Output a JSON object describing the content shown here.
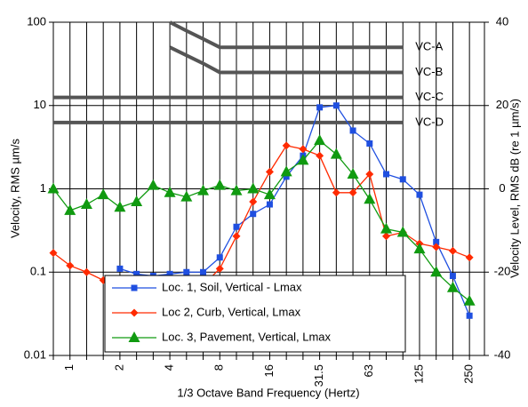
{
  "chart_data": {
    "type": "line",
    "xlabel": "1/3 Octave Band Frequency (Hertz)",
    "ylabel": "Velocity, RMS µm/s",
    "y2label": "Velocity Level, RMS dB (re 1 µm/s)",
    "categories": [
      null,
      "1",
      null,
      null,
      "2",
      null,
      null,
      "4",
      null,
      null,
      "8",
      null,
      null,
      "16",
      null,
      null,
      "31.5",
      null,
      null,
      "63",
      null,
      null,
      "125",
      null,
      null,
      "250"
    ],
    "ylim": [
      0.01,
      100
    ],
    "yticks": [
      0.01,
      0.1,
      1,
      10,
      100
    ],
    "yscale": "log",
    "y2lim": [
      -40,
      40
    ],
    "y2ticks": [
      -40,
      -20,
      0,
      20,
      40
    ],
    "grid": true,
    "legend": "bottom",
    "series": [
      {
        "name": "Loc. 1, Soil, Vertical - Lmax",
        "color": "#1f4fe0",
        "marker": "square",
        "values": [
          null,
          null,
          null,
          null,
          0.11,
          0.095,
          0.09,
          0.095,
          0.1,
          0.1,
          0.15,
          0.35,
          0.5,
          0.65,
          1.4,
          2.5,
          9.5,
          10,
          5,
          3.5,
          1.5,
          1.3,
          0.85,
          0.23,
          0.09,
          0.03
        ]
      },
      {
        "name": "Loc 2, Curb, Vertical, Lmax",
        "color": "#ff2a00",
        "marker": "diamond",
        "values": [
          0.17,
          0.12,
          0.1,
          0.08,
          0.07,
          0.065,
          0.06,
          0.06,
          0.065,
          0.07,
          0.11,
          0.27,
          0.7,
          1.6,
          3.3,
          3,
          2.5,
          0.9,
          0.9,
          1.5,
          0.27,
          0.3,
          0.22,
          0.2,
          0.18,
          0.15
        ]
      },
      {
        "name": "Loc. 3, Pavement, Vertical, Lmax",
        "color": "#109a10",
        "marker": "triangle",
        "values": [
          1.0,
          0.55,
          0.65,
          0.85,
          0.6,
          0.7,
          1.1,
          0.9,
          0.8,
          0.95,
          1.1,
          0.95,
          1.0,
          0.85,
          1.6,
          2.2,
          3.8,
          2.6,
          1.5,
          0.75,
          0.33,
          0.3,
          0.19,
          0.1,
          0.065,
          0.045
        ]
      }
    ],
    "criteria": [
      {
        "name": "VC-A",
        "color": "#555555",
        "values": [
          null,
          null,
          null,
          null,
          null,
          null,
          null,
          100,
          79,
          63,
          50,
          50,
          50,
          50,
          50,
          50,
          50,
          50,
          50,
          50,
          50,
          50,
          null,
          null,
          null,
          null
        ]
      },
      {
        "name": "VC-B",
        "color": "#555555",
        "values": [
          null,
          null,
          null,
          null,
          null,
          null,
          null,
          50,
          40,
          32,
          25,
          25,
          25,
          25,
          25,
          25,
          25,
          25,
          25,
          25,
          25,
          25,
          null,
          null,
          null,
          null
        ]
      },
      {
        "name": "VC-C",
        "color": "#555555",
        "values": [
          12.5,
          12.5,
          12.5,
          12.5,
          12.5,
          12.5,
          12.5,
          12.5,
          12.5,
          12.5,
          12.5,
          12.5,
          12.5,
          12.5,
          12.5,
          12.5,
          12.5,
          12.5,
          12.5,
          12.5,
          12.5,
          12.5,
          null,
          null,
          null,
          null
        ]
      },
      {
        "name": "VC-D",
        "color": "#555555",
        "values": [
          6.25,
          6.25,
          6.25,
          6.25,
          6.25,
          6.25,
          6.25,
          6.25,
          6.25,
          6.25,
          6.25,
          6.25,
          6.25,
          6.25,
          6.25,
          6.25,
          6.25,
          6.25,
          6.25,
          6.25,
          6.25,
          6.25,
          null,
          null,
          null,
          null
        ]
      }
    ]
  }
}
